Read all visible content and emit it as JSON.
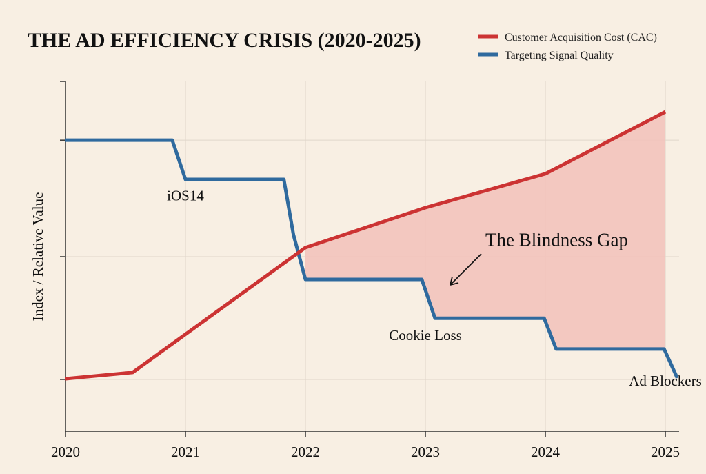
{
  "chart_data": {
    "type": "line",
    "title": "THE AD EFFICIENCY CRISIS (2020-2025)",
    "xlabel": "",
    "ylabel": "Index / Relative Value",
    "xlim": [
      2020,
      2025.1
    ],
    "ylim": [
      0,
      100
    ],
    "x_ticks": [
      2020,
      2021,
      2022,
      2023,
      2024,
      2025
    ],
    "y_grid_values": [
      14.8,
      49.9,
      83.2
    ],
    "grid": true,
    "legend_placement": "top-right",
    "series": [
      {
        "name": "Customer Acquisition Cost (CAC)",
        "color": "#cc3333",
        "points": [
          [
            2020,
            15.0
          ],
          [
            2020.56,
            16.8
          ],
          [
            2022,
            52.5
          ],
          [
            2023,
            63.9
          ],
          [
            2024,
            73.6
          ],
          [
            2025,
            91.3
          ]
        ]
      },
      {
        "name": "Targeting Signal Quality",
        "color": "#2f6a9e",
        "points": [
          [
            2020,
            83.2
          ],
          [
            2020.89,
            83.2
          ],
          [
            2021,
            72.0
          ],
          [
            2021.82,
            72.0
          ],
          [
            2021.9,
            56.2
          ],
          [
            2022,
            43.4
          ],
          [
            2022.97,
            43.4
          ],
          [
            2023.08,
            32.3
          ],
          [
            2023.99,
            32.3
          ],
          [
            2024.09,
            23.5
          ],
          [
            2024.99,
            23.5
          ],
          [
            2025.1,
            15.2
          ]
        ]
      }
    ],
    "shaded_region": {
      "label": "The Blindness Gap",
      "color": "#f2c3bb",
      "x_range": [
        2022,
        2025
      ]
    },
    "annotations": [
      {
        "text": "iOS14",
        "x": 2021,
        "y": 66
      },
      {
        "text": "Cookie Loss",
        "x": 2023,
        "y": 26
      },
      {
        "text": "Ad Blockers",
        "x": 2025,
        "y": 13
      },
      {
        "text": "The Blindness Gap",
        "x": 2023.5,
        "y": 53
      }
    ]
  }
}
